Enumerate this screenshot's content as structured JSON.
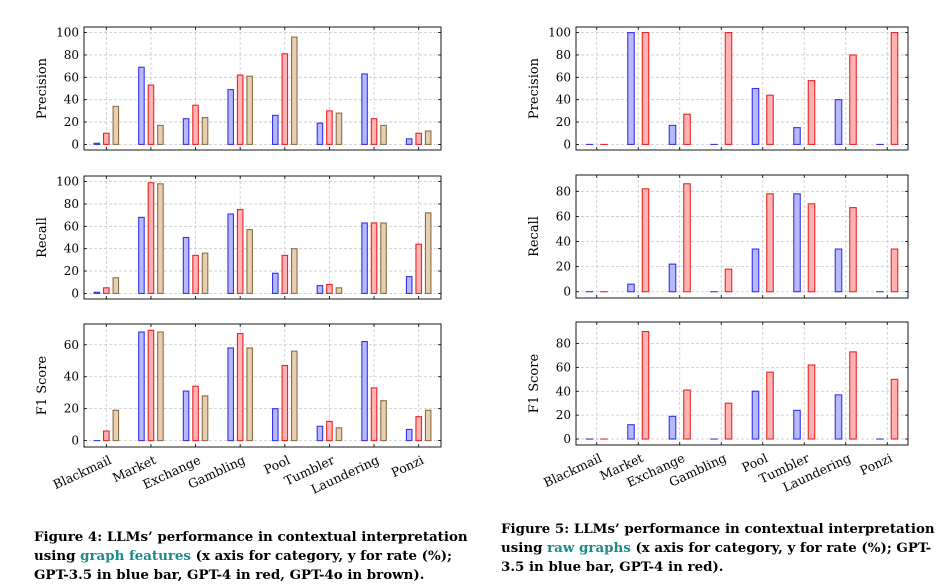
{
  "figures": {
    "fig4": {
      "caption": {
        "prefix": "Figure 4: LLMs’ performance in contextual interpretation using ",
        "highlight": "graph features",
        "suffix": " (x axis for category, y for rate (%); GPT-3.5 in blue bar, GPT-4 in red, GPT-4o in brown)."
      }
    },
    "fig5": {
      "caption": {
        "prefix": "Figure 5: LLMs’ performance in contextual interpretation using ",
        "highlight": "raw graphs",
        "suffix": " (x axis for category, y for rate (%); GPT-3.5 in blue bar, GPT-4 in red)."
      }
    }
  },
  "colors": {
    "blue_stroke": "#3333ee",
    "blue_fill": "#b8b8ff",
    "red_stroke": "#ee2222",
    "red_fill": "#ffb3b3",
    "brown_stroke": "#8a6e4b",
    "brown_fill": "#e8cdb0",
    "grid": "#c8c8c8"
  },
  "chart_data": [
    {
      "type": "bar",
      "figure": "Figure 4",
      "ylabel": "Precision",
      "categories": [
        "Blackmail",
        "Market",
        "Exchange",
        "Gambling",
        "Pool",
        "Tumbler",
        "Laundering",
        "Ponzi"
      ],
      "ylim": [
        -5,
        105
      ],
      "yticks": [
        0,
        20,
        40,
        60,
        80,
        100
      ],
      "series": [
        {
          "name": "GPT-3.5",
          "color": "blue",
          "values": [
            1,
            69,
            23,
            49,
            26,
            19,
            63,
            5
          ]
        },
        {
          "name": "GPT-4",
          "color": "red",
          "values": [
            10,
            53,
            35,
            62,
            81,
            30,
            23,
            10
          ]
        },
        {
          "name": "GPT-4o",
          "color": "brown",
          "values": [
            34,
            17,
            24,
            61,
            96,
            28,
            17,
            12
          ]
        }
      ]
    },
    {
      "type": "bar",
      "figure": "Figure 4",
      "ylabel": "Recall",
      "categories": [
        "Blackmail",
        "Market",
        "Exchange",
        "Gambling",
        "Pool",
        "Tumbler",
        "Laundering",
        "Ponzi"
      ],
      "ylim": [
        -5,
        105
      ],
      "yticks": [
        0,
        20,
        40,
        60,
        80,
        100
      ],
      "series": [
        {
          "name": "GPT-3.5",
          "color": "blue",
          "values": [
            1,
            68,
            50,
            71,
            18,
            7,
            63,
            15
          ]
        },
        {
          "name": "GPT-4",
          "color": "red",
          "values": [
            5,
            99,
            34,
            75,
            34,
            8,
            63,
            44
          ]
        },
        {
          "name": "GPT-4o",
          "color": "brown",
          "values": [
            14,
            98,
            36,
            57,
            40,
            5,
            63,
            72
          ]
        }
      ]
    },
    {
      "type": "bar",
      "figure": "Figure 4",
      "ylabel": "F1 Score",
      "categories": [
        "Blackmail",
        "Market",
        "Exchange",
        "Gambling",
        "Pool",
        "Tumbler",
        "Laundering",
        "Ponzi"
      ],
      "ylim": [
        -4,
        73
      ],
      "yticks": [
        0,
        20,
        40,
        60
      ],
      "series": [
        {
          "name": "GPT-3.5",
          "color": "blue",
          "values": [
            0,
            68,
            31,
            58,
            20,
            9,
            62,
            7
          ]
        },
        {
          "name": "GPT-4",
          "color": "red",
          "values": [
            6,
            69,
            34,
            67,
            47,
            12,
            33,
            15
          ]
        },
        {
          "name": "GPT-4o",
          "color": "brown",
          "values": [
            19,
            68,
            28,
            58,
            56,
            8,
            25,
            19
          ]
        }
      ]
    },
    {
      "type": "bar",
      "figure": "Figure 5",
      "ylabel": "Precision",
      "categories": [
        "Blackmail",
        "Market",
        "Exchange",
        "Gambling",
        "Pool",
        "Tumbler",
        "Laundering",
        "Ponzi"
      ],
      "ylim": [
        -5,
        105
      ],
      "yticks": [
        0,
        20,
        40,
        60,
        80,
        100
      ],
      "series": [
        {
          "name": "GPT-3.5",
          "color": "blue",
          "values": [
            0,
            100,
            17,
            0,
            50,
            15,
            40,
            0
          ]
        },
        {
          "name": "GPT-4",
          "color": "red",
          "values": [
            0,
            100,
            27,
            100,
            44,
            57,
            80,
            100
          ]
        }
      ]
    },
    {
      "type": "bar",
      "figure": "Figure 5",
      "ylabel": "Recall",
      "categories": [
        "Blackmail",
        "Market",
        "Exchange",
        "Gambling",
        "Pool",
        "Tumbler",
        "Laundering",
        "Ponzi"
      ],
      "ylim": [
        -5,
        93
      ],
      "yticks": [
        0,
        20,
        40,
        60,
        80
      ],
      "series": [
        {
          "name": "GPT-3.5",
          "color": "blue",
          "values": [
            0,
            6,
            22,
            0,
            34,
            78,
            34,
            0
          ]
        },
        {
          "name": "GPT-4",
          "color": "red",
          "values": [
            0,
            82,
            86,
            18,
            78,
            70,
            67,
            34
          ]
        }
      ]
    },
    {
      "type": "bar",
      "figure": "Figure 5",
      "ylabel": "F1 Score",
      "categories": [
        "Blackmail",
        "Market",
        "Exchange",
        "Gambling",
        "Pool",
        "Tumbler",
        "Laundering",
        "Ponzi"
      ],
      "ylim": [
        -5,
        98
      ],
      "yticks": [
        0,
        20,
        40,
        60,
        80
      ],
      "series": [
        {
          "name": "GPT-3.5",
          "color": "blue",
          "values": [
            0,
            12,
            19,
            0,
            40,
            24,
            37,
            0
          ]
        },
        {
          "name": "GPT-4",
          "color": "red",
          "values": [
            0,
            90,
            41,
            30,
            56,
            62,
            73,
            50
          ]
        }
      ]
    }
  ]
}
